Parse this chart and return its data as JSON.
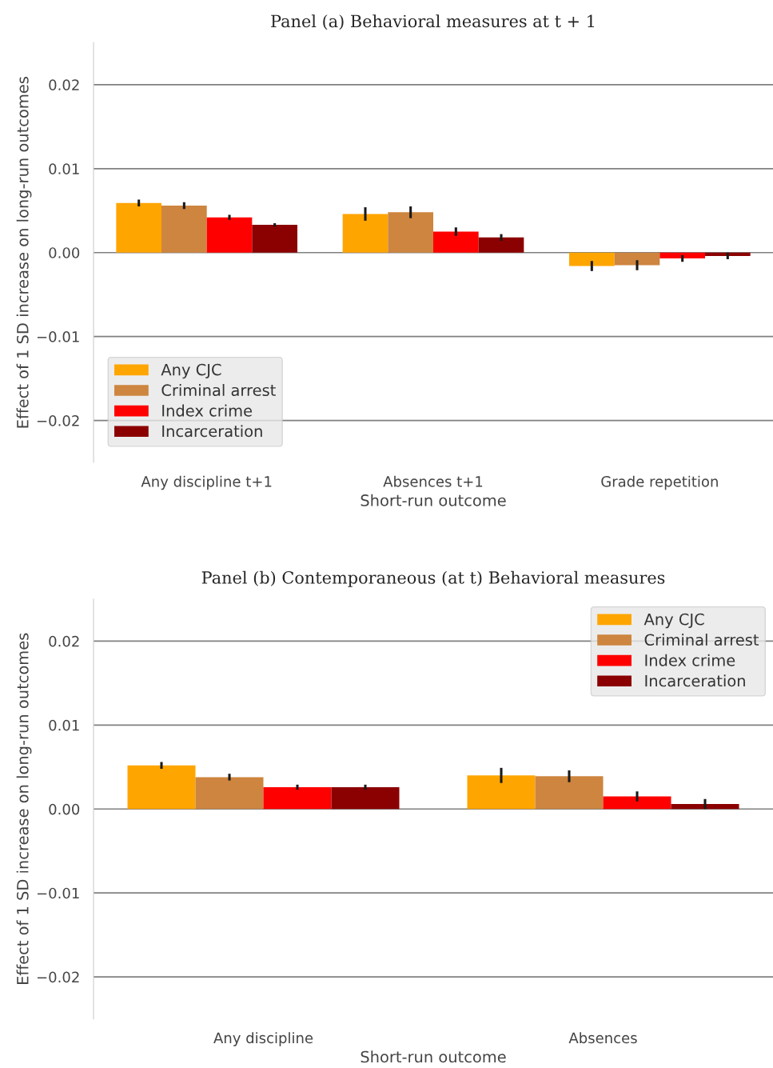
{
  "chart_data": [
    {
      "type": "bar",
      "title": "Panel (a) Behavioral measures at t + 1",
      "xlabel": "Short-run outcome",
      "ylabel": "Effect of 1 SD increase on long-run outcomes",
      "categories": [
        "Any discipline t+1",
        "Absences t+1",
        "Grade repetition"
      ],
      "series": [
        {
          "name": "Any CJC",
          "color": "#ffa500",
          "values": [
            0.0059,
            0.0046,
            -0.0016
          ],
          "errors": [
            0.0004,
            0.0008,
            0.0006
          ]
        },
        {
          "name": "Criminal arrest",
          "color": "#cd853f",
          "values": [
            0.0056,
            0.0048,
            -0.0015
          ],
          "errors": [
            0.0004,
            0.0007,
            0.0006
          ]
        },
        {
          "name": "Index crime",
          "color": "#ff0000",
          "values": [
            0.0042,
            0.0025,
            -0.0007
          ],
          "errors": [
            0.0003,
            0.0005,
            0.0004
          ]
        },
        {
          "name": "Incarceration",
          "color": "#8b0000",
          "values": [
            0.0033,
            0.0018,
            -0.0004
          ],
          "errors": [
            0.0002,
            0.0004,
            0.0004
          ]
        }
      ],
      "ylim": [
        -0.025,
        0.025
      ],
      "yticks": [
        {
          "value": -0.02,
          "label": "−0.02"
        },
        {
          "value": -0.01,
          "label": "−0.01"
        },
        {
          "value": 0,
          "label": "0.00"
        },
        {
          "value": 0.01,
          "label": "0.01"
        },
        {
          "value": 0.02,
          "label": "0.02"
        }
      ],
      "grid": "y",
      "legend": "bottom left"
    },
    {
      "type": "bar",
      "title": "Panel (b) Contemporaneous (at t) Behavioral measures",
      "xlabel": "Short-run outcome",
      "ylabel": "Effect of 1 SD increase on long-run outcomes",
      "categories": [
        "Any discipline",
        "Absences"
      ],
      "series": [
        {
          "name": "Any CJC",
          "color": "#ffa500",
          "values": [
            0.0052,
            0.004
          ],
          "errors": [
            0.0004,
            0.0009
          ]
        },
        {
          "name": "Criminal arrest",
          "color": "#cd853f",
          "values": [
            0.0038,
            0.0039
          ],
          "errors": [
            0.0004,
            0.0007
          ]
        },
        {
          "name": "Index crime",
          "color": "#ff0000",
          "values": [
            0.0026,
            0.0015
          ],
          "errors": [
            0.0003,
            0.0006
          ]
        },
        {
          "name": "Incarceration",
          "color": "#8b0000",
          "values": [
            0.0026,
            0.0006
          ],
          "errors": [
            0.0003,
            0.0006
          ]
        }
      ],
      "ylim": [
        -0.025,
        0.025
      ],
      "yticks": [
        {
          "value": -0.02,
          "label": "−0.02"
        },
        {
          "value": -0.01,
          "label": "−0.01"
        },
        {
          "value": 0,
          "label": "0.00"
        },
        {
          "value": 0.01,
          "label": "0.01"
        },
        {
          "value": 0.02,
          "label": "0.02"
        }
      ],
      "grid": "y",
      "legend": "top right"
    }
  ]
}
